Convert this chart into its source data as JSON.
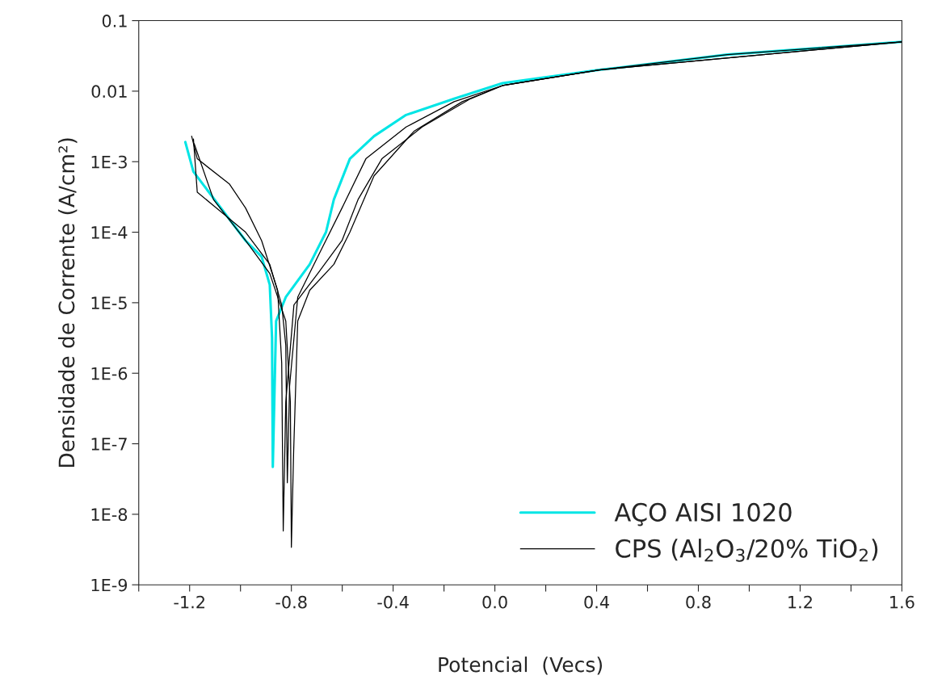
{
  "chart_data": {
    "type": "line",
    "xlabel": "Potencial  (Vecs)",
    "ylabel": "Densidade de Corrente (A/cm²)",
    "log": "y",
    "grid": false,
    "legend": "bottom right",
    "xlim": [
      -1.4,
      1.6
    ],
    "xticks": [
      {
        "value": -1.4,
        "label": null
      },
      -1.2,
      {
        "value": -1.0,
        "label": null
      },
      -0.8,
      {
        "value": -0.6,
        "label": null
      },
      -0.4,
      {
        "value": -0.2,
        "label": null
      },
      {
        "value": 0.0,
        "label": "0.0"
      },
      {
        "value": 0.2,
        "label": null
      },
      0.4,
      {
        "value": 0.6,
        "label": null
      },
      0.8,
      {
        "value": 1.0,
        "label": null
      },
      1.2,
      {
        "value": 1.4,
        "label": null
      },
      1.6
    ],
    "ylim": [
      1e-09,
      0.1
    ],
    "yticks": [
      {
        "value": 1e-09,
        "label": "1E-9"
      },
      {
        "value": 1e-08,
        "label": "1E-8"
      },
      {
        "value": 1e-07,
        "label": "1E-7"
      },
      {
        "value": 1e-06,
        "label": "1E-6"
      },
      {
        "value": 1e-05,
        "label": "1E-5"
      },
      {
        "value": 0.0001,
        "label": "1E-4"
      },
      {
        "value": 0.001,
        "label": "1E-3"
      },
      0.01,
      0.1
    ],
    "series": [
      {
        "name": "AÇO AISI 1020",
        "color": "#00e5e5",
        "x": [
          -1.217,
          -1.185,
          -0.98,
          -0.917,
          -0.885,
          -0.876,
          -0.873,
          -0.86,
          -0.822,
          -0.728,
          -0.664,
          -0.633,
          -0.57,
          -0.475,
          -0.349,
          -0.16,
          0.03,
          0.41,
          0.914,
          1.6
        ],
        "values": [
          0.0019,
          0.00072,
          7.6e-05,
          4.5e-05,
          1.8e-05,
          3.2e-06,
          4.7e-08,
          5.5e-06,
          1.2e-05,
          3.5e-05,
          0.0001,
          0.00029,
          0.0011,
          0.0023,
          0.0046,
          0.0078,
          0.013,
          0.02,
          0.033,
          0.05
        ]
      },
      {
        "name": "CPS (Al$_{2}$O$_{3}$/20% TiO$_{2}$)",
        "color": "#000000",
        "x": [
          -1.185,
          -1.17,
          -0.98,
          -0.885,
          -0.838,
          -0.822,
          -0.816,
          -0.807,
          -0.775,
          -0.696,
          -0.601,
          -0.507,
          -0.349,
          -0.16,
          0.03,
          0.41,
          0.914,
          1.6
        ],
        "values": [
          0.0021,
          0.00037,
          0.0001,
          3.5e-05,
          9.3e-06,
          2.5e-06,
          2.8e-08,
          6.6e-07,
          1.2e-05,
          4.5e-05,
          0.00022,
          0.0011,
          0.0031,
          0.0071,
          0.012,
          0.02,
          0.033,
          0.05
        ]
      },
      {
        "color": "#000000",
        "x": [
          -1.192,
          -1.17,
          -1.043,
          -0.98,
          -0.917,
          -0.854,
          -0.838,
          -0.832,
          -0.822,
          -0.79,
          -0.696,
          -0.601,
          -0.538,
          -0.444,
          -0.286,
          -0.096,
          0.03,
          0.41,
          1.6
        ],
        "values": [
          0.0023,
          0.0011,
          0.00048,
          0.00022,
          7.6e-05,
          1.5e-05,
          1.4e-06,
          5.8e-09,
          3.9e-07,
          9.3e-06,
          2.6e-05,
          7.6e-05,
          0.00029,
          0.0011,
          0.0031,
          0.0078,
          0.012,
          0.02,
          0.05
        ]
      },
      {
        "color": "#000000",
        "x": [
          -1.182,
          -1.106,
          -0.98,
          -0.885,
          -0.822,
          -0.804,
          -0.8,
          -0.791,
          -0.775,
          -0.728,
          -0.633,
          -0.57,
          -0.475,
          -0.318,
          -0.128,
          0.03,
          0.41,
          1.6
        ],
        "values": [
          0.0018,
          0.00029,
          7.6e-05,
          2.6e-05,
          5.5e-06,
          3.9e-07,
          3.4e-09,
          7.9e-08,
          5.5e-06,
          1.5e-05,
          3.5e-05,
          0.0001,
          0.00063,
          0.0027,
          0.0071,
          0.012,
          0.02,
          0.05
        ]
      }
    ]
  }
}
